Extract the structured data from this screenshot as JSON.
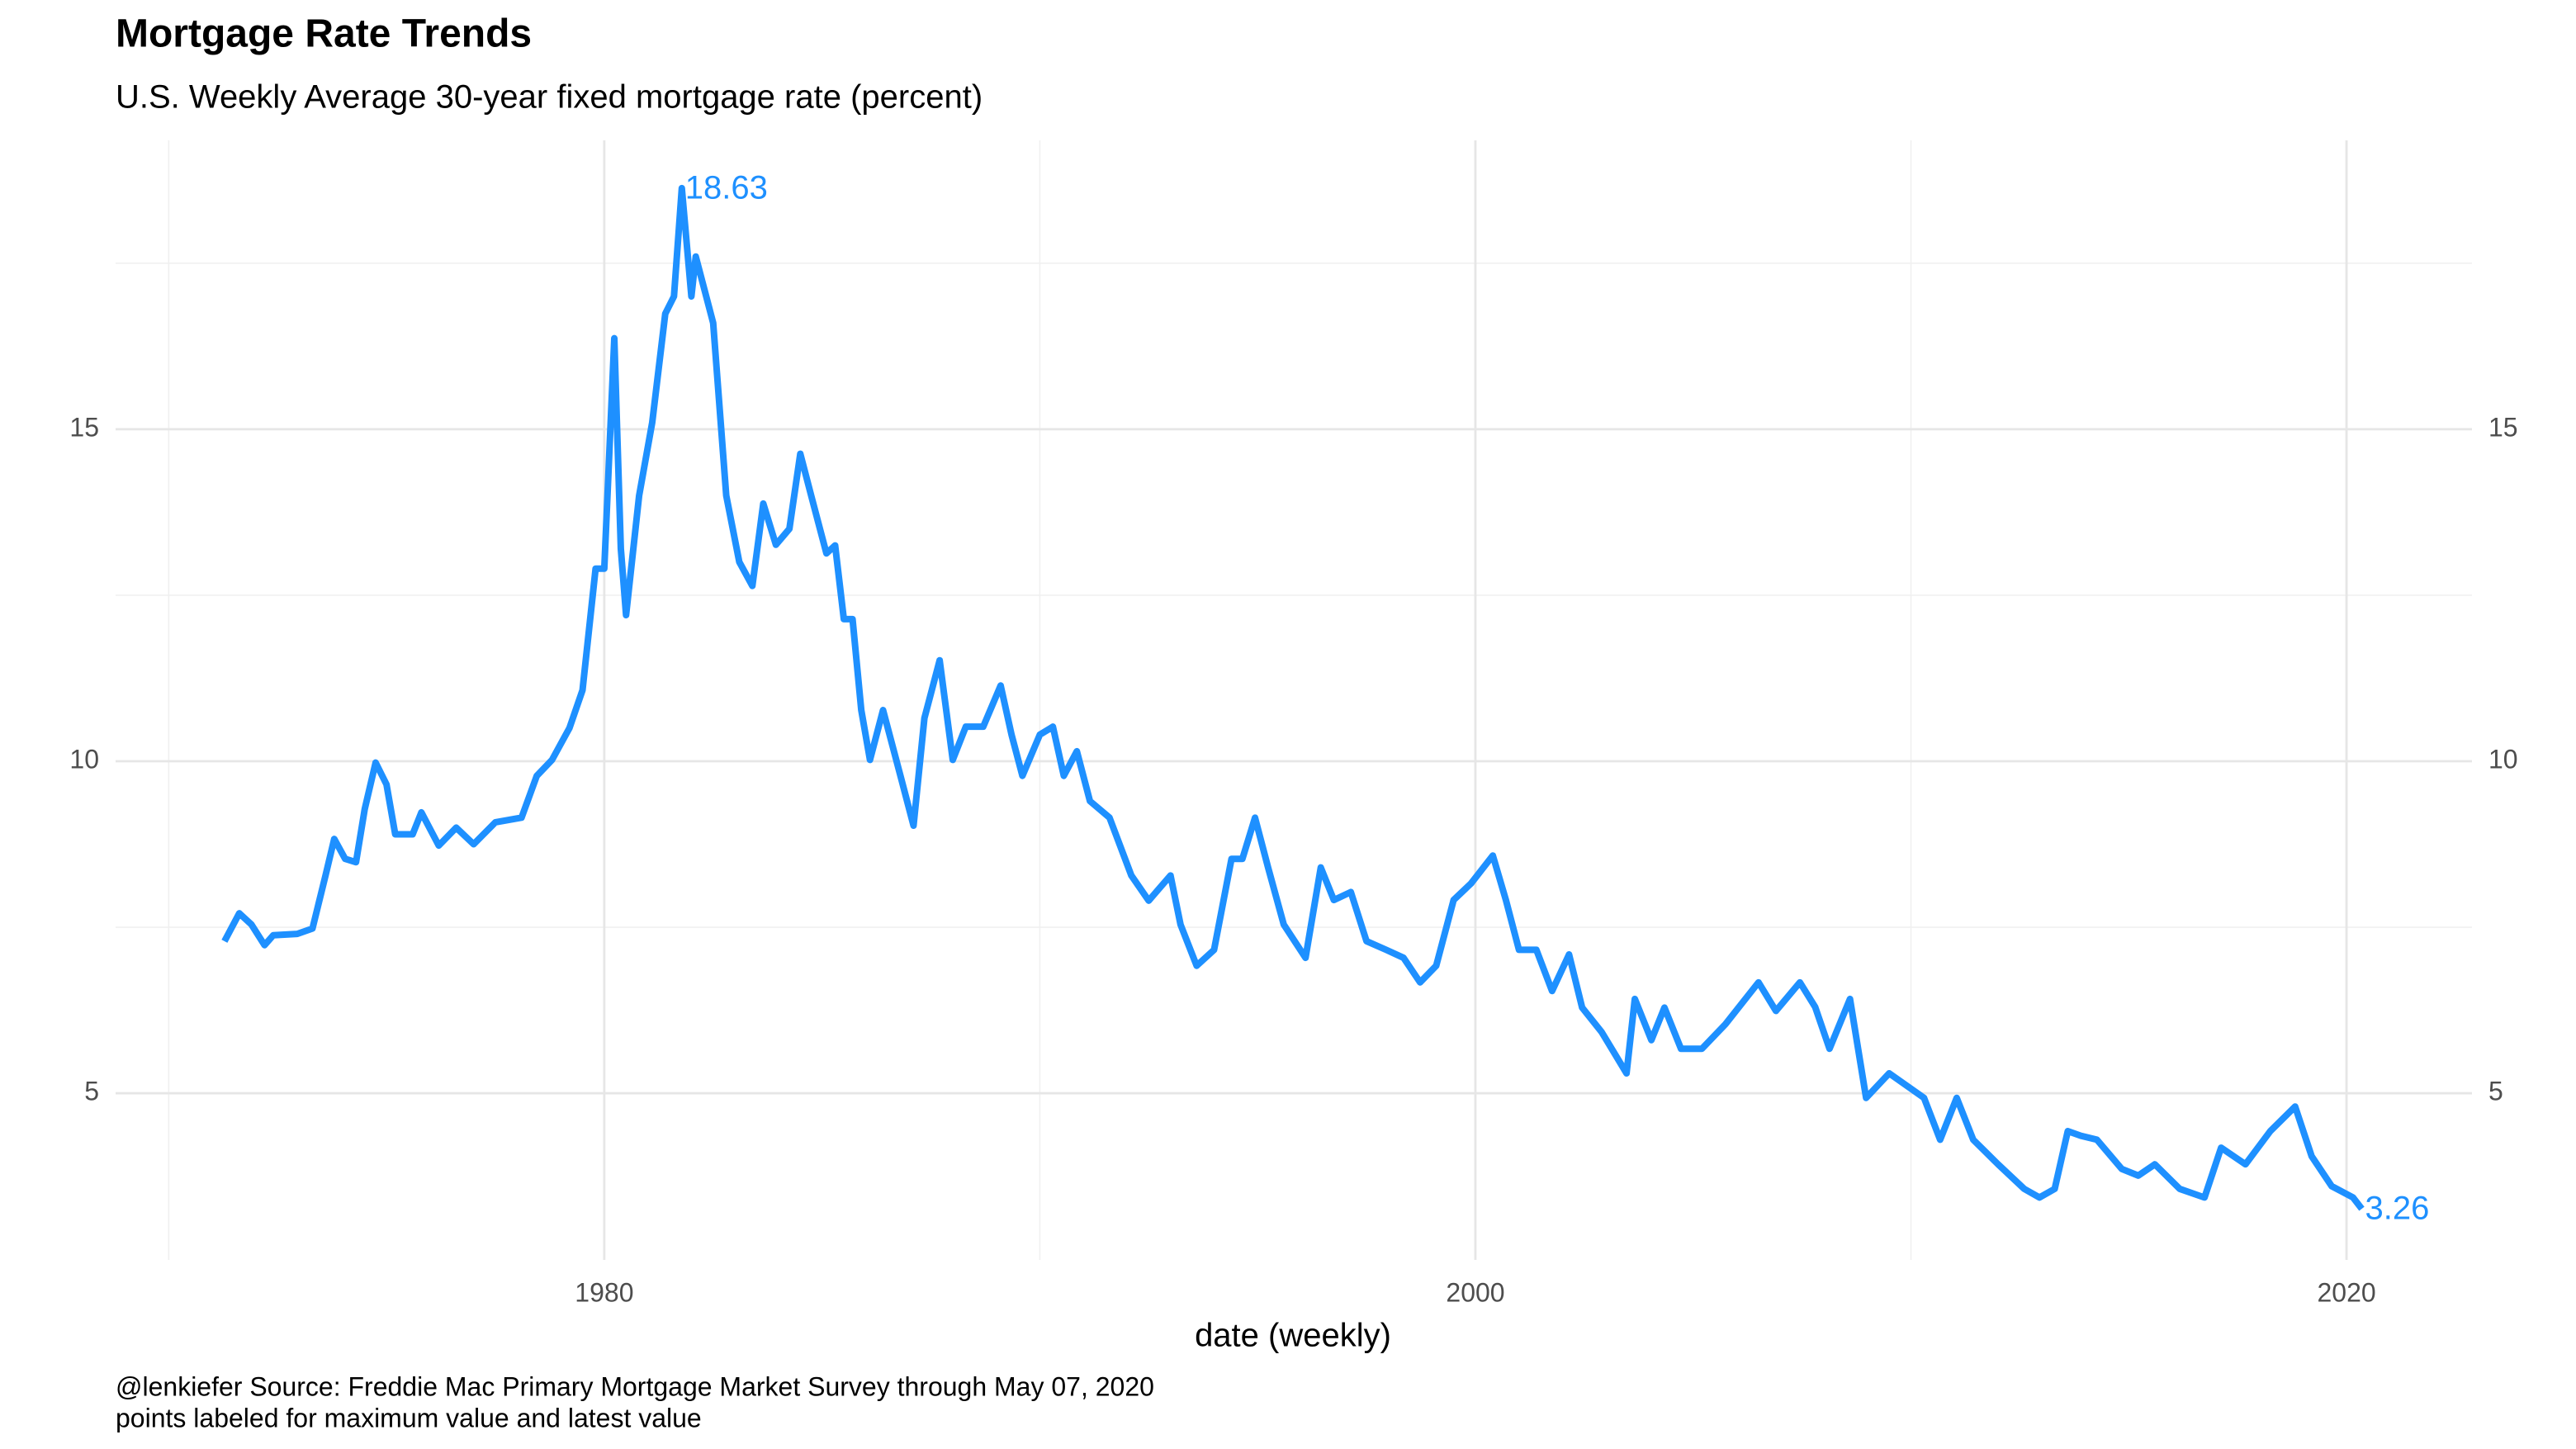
{
  "chart_data": {
    "type": "line",
    "title": "Mortgage Rate Trends",
    "subtitle": "U.S. Weekly Average 30-year fixed mortgage rate (percent)",
    "x_label": "date (weekly)",
    "caption": [
      "@lenkiefer Source: Freddie Mac Primary Mortgage Market Survey through May 07, 2020",
      "points labeled for maximum value and latest value"
    ],
    "color": "#1e90ff",
    "grid": true,
    "xlim": [
      1968.78,
      2022.88
    ],
    "xticks": [
      1980,
      2000,
      2020
    ],
    "xminor": [
      1970,
      1990,
      2010
    ],
    "ylim": [
      2.49,
      19.35
    ],
    "yticks": [
      5,
      10,
      15
    ],
    "yminor": [
      7.5,
      12.5,
      17.5
    ],
    "x": [
      1971.28,
      1971.62,
      1971.9,
      1972.2,
      1972.4,
      1972.95,
      1973.3,
      1973.6,
      1973.8,
      1974.05,
      1974.3,
      1974.5,
      1974.75,
      1975.0,
      1975.2,
      1975.6,
      1975.8,
      1976.2,
      1976.6,
      1977.0,
      1977.5,
      1978.1,
      1978.45,
      1978.8,
      1979.2,
      1979.5,
      1979.8,
      1980.0,
      1980.23,
      1980.38,
      1980.5,
      1980.8,
      1981.1,
      1981.4,
      1981.6,
      1981.78,
      1982.0,
      1982.1,
      1982.4,
      1982.5,
      1982.8,
      1983.1,
      1983.4,
      1983.65,
      1983.94,
      1984.25,
      1984.5,
      1984.75,
      1985.1,
      1985.3,
      1985.5,
      1985.7,
      1985.9,
      1986.1,
      1986.4,
      1986.8,
      1987.1,
      1987.35,
      1987.7,
      1988.0,
      1988.3,
      1988.7,
      1989.1,
      1989.35,
      1989.6,
      1990.0,
      1990.3,
      1990.55,
      1990.85,
      1991.15,
      1991.6,
      1992.1,
      1992.5,
      1993.0,
      1993.23,
      1993.6,
      1994.0,
      1994.4,
      1994.65,
      1994.94,
      1995.24,
      1995.6,
      1996.1,
      1996.45,
      1996.75,
      1997.14,
      1997.5,
      1997.95,
      1998.35,
      1998.73,
      1999.1,
      1999.5,
      1999.9,
      2000.4,
      2000.7,
      2001.0,
      2001.4,
      2001.76,
      2002.15,
      2002.45,
      2002.9,
      2003.47,
      2003.66,
      2004.04,
      2004.34,
      2004.72,
      2005.2,
      2005.74,
      2006.5,
      2006.9,
      2007.45,
      2007.8,
      2008.13,
      2008.6,
      2008.97,
      2009.5,
      2010.3,
      2010.67,
      2011.05,
      2011.43,
      2012.0,
      2012.6,
      2012.95,
      2013.3,
      2013.6,
      2013.9,
      2014.27,
      2014.84,
      2015.22,
      2015.6,
      2016.17,
      2016.74,
      2017.12,
      2017.68,
      2018.25,
      2018.82,
      2019.2,
      2019.66,
      2020.15,
      2020.35
    ],
    "values": [
      7.29,
      7.71,
      7.54,
      7.23,
      7.38,
      7.4,
      7.48,
      8.28,
      8.83,
      8.53,
      8.48,
      9.28,
      9.98,
      9.65,
      8.9,
      8.9,
      9.23,
      8.73,
      9.0,
      8.75,
      9.08,
      9.15,
      9.78,
      10.02,
      10.5,
      11.07,
      12.9,
      12.9,
      16.37,
      13.2,
      12.2,
      14.0,
      15.1,
      16.74,
      17.0,
      18.63,
      17.0,
      17.6,
      16.85,
      16.6,
      14.0,
      13.0,
      12.64,
      13.88,
      13.26,
      13.5,
      14.63,
      14.0,
      13.13,
      13.25,
      12.14,
      12.14,
      10.77,
      10.02,
      10.77,
      9.78,
      9.03,
      10.65,
      11.52,
      10.02,
      10.52,
      10.52,
      11.14,
      10.4,
      9.78,
      10.4,
      10.52,
      9.78,
      10.15,
      9.4,
      9.15,
      8.28,
      7.9,
      8.28,
      7.54,
      6.92,
      7.16,
      8.53,
      8.53,
      9.15,
      8.4,
      7.54,
      7.04,
      8.4,
      7.91,
      8.03,
      7.29,
      7.16,
      7.04,
      6.67,
      6.92,
      7.91,
      8.16,
      8.58,
      7.91,
      7.16,
      7.16,
      6.54,
      7.09,
      6.29,
      5.92,
      5.3,
      6.42,
      5.8,
      6.29,
      5.67,
      5.67,
      6.04,
      6.67,
      6.24,
      6.67,
      6.3,
      5.67,
      6.42,
      4.93,
      5.3,
      4.93,
      4.3,
      4.93,
      4.3,
      3.93,
      3.56,
      3.43,
      3.56,
      4.43,
      4.36,
      4.3,
      3.86,
      3.76,
      3.93,
      3.56,
      3.43,
      4.18,
      3.93,
      4.43,
      4.8,
      4.05,
      3.6,
      3.43,
      3.26
    ],
    "point_labels": [
      {
        "x": 1981.78,
        "y": 18.63
      },
      {
        "x": 2020.35,
        "y": 3.26
      }
    ]
  }
}
